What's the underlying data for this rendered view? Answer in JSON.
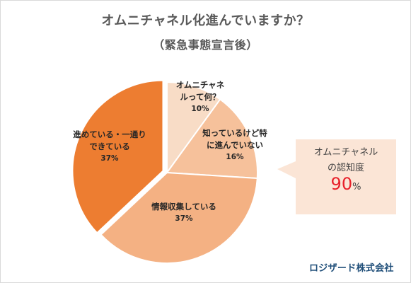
{
  "chart_data": {
    "type": "pie",
    "title": "オムニチャネル化進んでいますか？",
    "subtitle": "（緊急事態宣言後）",
    "slices": [
      {
        "label_lines": [
          "オムニチャネ",
          "ルって何？"
        ],
        "value": 10,
        "value_label": "10%",
        "color": "#f8dcc6"
      },
      {
        "label_lines": [
          "知っているけど特",
          "に進んでいない"
        ],
        "value": 16,
        "value_label": "16%",
        "color": "#f6c19b"
      },
      {
        "label_lines": [
          "情報収集している"
        ],
        "value": 37,
        "value_label": "37%",
        "color": "#f4b183"
      },
      {
        "label_lines": [
          "進めている・一通り",
          "できている"
        ],
        "value": 37,
        "value_label": "37%",
        "color": "#ed7d31"
      }
    ]
  },
  "callout": {
    "line1": "オムニチャネル",
    "line2": "の認知度",
    "value": "90",
    "unit": "%"
  },
  "brand": "ロジザード株式会社"
}
